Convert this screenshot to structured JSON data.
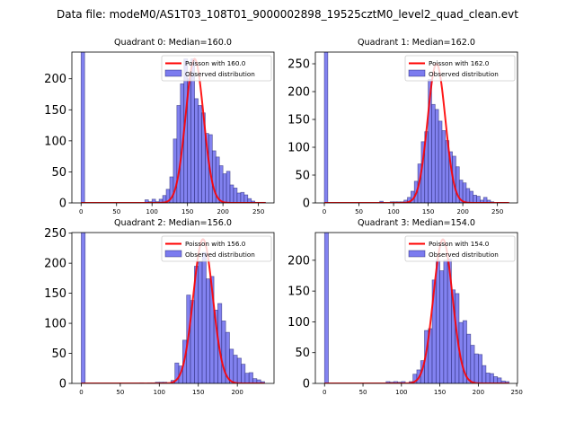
{
  "suptitle": "Data file: modeM0/AS1T03_108T01_9000002898_19525cztM0_level2_quad_clean.evt",
  "colors": {
    "bar_fill": "#7b7bef",
    "bar_edge": "#1a1a66",
    "poisson": "#ff0000",
    "axes": "#000000"
  },
  "chart_data": [
    {
      "type": "bar",
      "title": "Quadrant 0: Median=160.0",
      "xlabel": "",
      "ylabel": "",
      "xlim": [
        -13,
        272
      ],
      "ylim": [
        0,
        243
      ],
      "xticks": [
        0,
        50,
        100,
        150,
        200,
        250
      ],
      "yticks": [
        0,
        50,
        100,
        150,
        200
      ],
      "bin_width": 5,
      "legend": {
        "position": "top-right",
        "entries": [
          "Poisson with 160.0",
          "Observed distribution"
        ]
      },
      "poisson_mean": 160.0,
      "poisson_peak": 232,
      "poisson_xrange": [
        0,
        260
      ],
      "bins": [
        0,
        90,
        95,
        100,
        105,
        110,
        115,
        120,
        125,
        130,
        135,
        140,
        145,
        150,
        155,
        160,
        165,
        170,
        175,
        180,
        185,
        190,
        195,
        200,
        205,
        210,
        215,
        220,
        225,
        230,
        235,
        240,
        245,
        250,
        255
      ],
      "values": [
        300,
        5,
        2,
        6,
        2,
        6,
        12,
        22,
        42,
        103,
        157,
        192,
        232,
        200,
        232,
        168,
        157,
        145,
        112,
        110,
        84,
        74,
        60,
        47,
        51,
        29,
        24,
        16,
        17,
        13,
        7,
        3,
        1,
        1,
        1
      ]
    },
    {
      "type": "bar",
      "title": "Quadrant 1: Median=162.0",
      "xlabel": "",
      "ylabel": "",
      "xlim": [
        -13,
        279
      ],
      "ylim": [
        0,
        271
      ],
      "xticks": [
        0,
        50,
        100,
        150,
        200,
        250
      ],
      "yticks": [
        0,
        50,
        100,
        150,
        200,
        250
      ],
      "bin_width": 5,
      "legend": {
        "position": "top-right",
        "entries": [
          "Poisson with 162.0",
          "Observed distribution"
        ]
      },
      "poisson_mean": 162.0,
      "poisson_peak": 250,
      "poisson_xrange": [
        0,
        267
      ],
      "bins": [
        0,
        80,
        95,
        100,
        105,
        110,
        115,
        120,
        125,
        130,
        135,
        140,
        145,
        150,
        155,
        160,
        165,
        170,
        175,
        180,
        185,
        190,
        195,
        200,
        205,
        210,
        215,
        220,
        225,
        230,
        235,
        240,
        250,
        255,
        260
      ],
      "values": [
        300,
        3,
        2,
        2,
        2,
        2,
        5,
        10,
        21,
        39,
        70,
        110,
        128,
        222,
        177,
        168,
        147,
        130,
        112,
        92,
        84,
        65,
        41,
        36,
        26,
        21,
        14,
        12,
        5,
        10,
        5,
        2,
        1,
        1,
        1
      ]
    },
    {
      "type": "bar",
      "title": "Quadrant 2: Median=156.0",
      "xlabel": "",
      "ylabel": "",
      "xlim": [
        -12,
        247
      ],
      "ylim": [
        0,
        251
      ],
      "xticks": [
        0,
        50,
        100,
        150,
        200
      ],
      "yticks": [
        0,
        50,
        100,
        150,
        200,
        250
      ],
      "bin_width": 5,
      "legend": {
        "position": "top-right",
        "entries": [
          "Poisson with 156.0",
          "Observed distribution"
        ]
      },
      "poisson_mean": 156.0,
      "poisson_peak": 240,
      "poisson_xrange": [
        0,
        235
      ],
      "bins": [
        0,
        75,
        85,
        90,
        95,
        100,
        105,
        115,
        120,
        125,
        130,
        135,
        140,
        145,
        150,
        155,
        160,
        165,
        170,
        175,
        180,
        185,
        190,
        195,
        200,
        205,
        210,
        215,
        220,
        225,
        230
      ],
      "values": [
        300,
        1,
        1,
        1,
        2,
        2,
        2,
        5,
        34,
        29,
        72,
        147,
        138,
        195,
        202,
        218,
        174,
        178,
        122,
        133,
        104,
        85,
        57,
        47,
        42,
        32,
        17,
        18,
        8,
        6,
        3
      ]
    },
    {
      "type": "bar",
      "title": "Quadrant 3: Median=154.0",
      "xlabel": "",
      "ylabel": "",
      "xlim": [
        -12,
        251
      ],
      "ylim": [
        0,
        245
      ],
      "xticks": [
        0,
        50,
        100,
        150,
        200,
        250
      ],
      "yticks": [
        0,
        50,
        100,
        150,
        200
      ],
      "bin_width": 5,
      "legend": {
        "position": "top-right",
        "entries": [
          "Poisson with 154.0",
          "Observed distribution"
        ]
      },
      "poisson_mean": 154.0,
      "poisson_peak": 234,
      "poisson_xrange": [
        0,
        240
      ],
      "bins": [
        0,
        80,
        85,
        90,
        95,
        100,
        110,
        115,
        120,
        125,
        130,
        135,
        140,
        145,
        150,
        155,
        160,
        165,
        170,
        175,
        180,
        185,
        190,
        195,
        200,
        205,
        210,
        215,
        220,
        225,
        230,
        235
      ],
      "values": [
        300,
        3,
        2,
        3,
        2,
        3,
        3,
        15,
        22,
        37,
        86,
        89,
        168,
        200,
        183,
        200,
        202,
        152,
        146,
        99,
        102,
        80,
        62,
        48,
        47,
        29,
        17,
        16,
        11,
        9,
        4,
        3
      ]
    }
  ]
}
